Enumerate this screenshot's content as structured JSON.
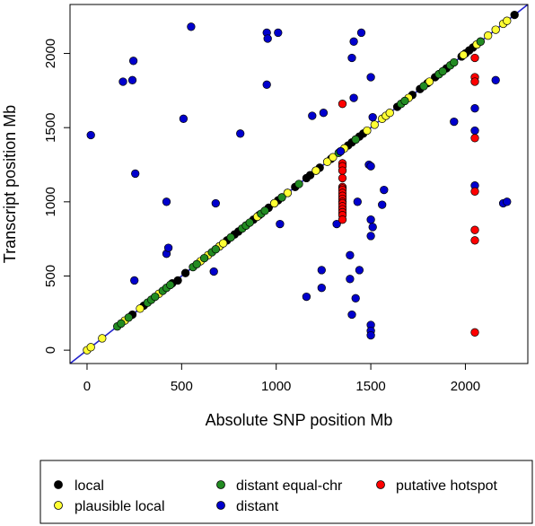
{
  "chart_data": {
    "type": "scatter",
    "title": "",
    "xlabel": "Absolute SNP position Mb",
    "ylabel": "Transcript position Mb",
    "xlim": [
      -90,
      2330
    ],
    "ylim": [
      -90,
      2330
    ],
    "xticks": [
      0,
      500,
      1000,
      1500,
      2000
    ],
    "yticks": [
      0,
      500,
      1000,
      1500,
      2000
    ],
    "reference_line": {
      "slope": 1,
      "intercept": 0,
      "color": "#2222cc"
    },
    "legend_position": "bottom",
    "series": [
      {
        "name": "local",
        "color": "#000000",
        "points": [
          [
            240,
            240
          ],
          [
            300,
            300
          ],
          [
            450,
            450
          ],
          [
            480,
            470
          ],
          [
            520,
            520
          ],
          [
            700,
            700
          ],
          [
            740,
            740
          ],
          [
            780,
            780
          ],
          [
            800,
            800
          ],
          [
            880,
            880
          ],
          [
            910,
            910
          ],
          [
            960,
            960
          ],
          [
            990,
            990
          ],
          [
            1010,
            1010
          ],
          [
            1030,
            1030
          ],
          [
            1060,
            1060
          ],
          [
            1100,
            1100
          ],
          [
            1160,
            1160
          ],
          [
            1180,
            1180
          ],
          [
            1210,
            1210
          ],
          [
            1230,
            1230
          ],
          [
            1290,
            1290
          ],
          [
            1380,
            1380
          ],
          [
            1400,
            1400
          ],
          [
            1420,
            1420
          ],
          [
            1440,
            1440
          ],
          [
            1460,
            1460
          ],
          [
            1640,
            1640
          ],
          [
            1720,
            1720
          ],
          [
            1760,
            1760
          ],
          [
            1800,
            1800
          ],
          [
            1840,
            1840
          ],
          [
            1900,
            1900
          ],
          [
            1980,
            1980
          ],
          [
            2000,
            2000
          ],
          [
            2020,
            2020
          ],
          [
            2040,
            2040
          ],
          [
            2060,
            2060
          ],
          [
            2080,
            2080
          ],
          [
            2260,
            2260
          ]
        ]
      },
      {
        "name": "plausible local",
        "color": "#ffff33",
        "points": [
          [
            0,
            0
          ],
          [
            20,
            20
          ],
          [
            80,
            80
          ],
          [
            200,
            200
          ],
          [
            280,
            280
          ],
          [
            380,
            380
          ],
          [
            600,
            600
          ],
          [
            640,
            640
          ],
          [
            700,
            700
          ],
          [
            720,
            720
          ],
          [
            840,
            840
          ],
          [
            900,
            900
          ],
          [
            990,
            990
          ],
          [
            1060,
            1060
          ],
          [
            1210,
            1210
          ],
          [
            1270,
            1270
          ],
          [
            1300,
            1300
          ],
          [
            1360,
            1360
          ],
          [
            1480,
            1480
          ],
          [
            1520,
            1520
          ],
          [
            1560,
            1560
          ],
          [
            1580,
            1580
          ],
          [
            1600,
            1600
          ],
          [
            1700,
            1700
          ],
          [
            1810,
            1810
          ],
          [
            1860,
            1860
          ],
          [
            1990,
            1990
          ],
          [
            2060,
            2060
          ],
          [
            2120,
            2120
          ],
          [
            2160,
            2160
          ],
          [
            2200,
            2200
          ],
          [
            2220,
            2220
          ]
        ]
      },
      {
        "name": "distant equal-chr",
        "color": "#228b22",
        "points": [
          [
            160,
            160
          ],
          [
            180,
            180
          ],
          [
            220,
            220
          ],
          [
            320,
            320
          ],
          [
            340,
            340
          ],
          [
            360,
            360
          ],
          [
            400,
            400
          ],
          [
            420,
            420
          ],
          [
            440,
            440
          ],
          [
            560,
            560
          ],
          [
            580,
            580
          ],
          [
            620,
            620
          ],
          [
            660,
            660
          ],
          [
            680,
            680
          ],
          [
            760,
            760
          ],
          [
            820,
            820
          ],
          [
            840,
            840
          ],
          [
            860,
            860
          ],
          [
            920,
            920
          ],
          [
            940,
            940
          ],
          [
            1030,
            1030
          ],
          [
            1120,
            1120
          ],
          [
            1330,
            1330
          ],
          [
            1340,
            1340
          ],
          [
            1420,
            1420
          ],
          [
            1660,
            1660
          ],
          [
            1680,
            1680
          ],
          [
            1780,
            1780
          ],
          [
            1860,
            1860
          ],
          [
            1880,
            1880
          ],
          [
            1920,
            1920
          ],
          [
            1940,
            1940
          ],
          [
            2080,
            2080
          ]
        ]
      },
      {
        "name": "distant",
        "color": "#0000cd",
        "points": [
          [
            20,
            1450
          ],
          [
            190,
            1810
          ],
          [
            240,
            1820
          ],
          [
            245,
            1950
          ],
          [
            250,
            470
          ],
          [
            255,
            1190
          ],
          [
            420,
            1000
          ],
          [
            420,
            650
          ],
          [
            430,
            690
          ],
          [
            510,
            1560
          ],
          [
            550,
            2180
          ],
          [
            670,
            530
          ],
          [
            680,
            990
          ],
          [
            810,
            1460
          ],
          [
            950,
            1790
          ],
          [
            950,
            2140
          ],
          [
            955,
            2100
          ],
          [
            1010,
            2140
          ],
          [
            1020,
            850
          ],
          [
            1160,
            360
          ],
          [
            1190,
            1580
          ],
          [
            1240,
            540
          ],
          [
            1240,
            420
          ],
          [
            1250,
            1600
          ],
          [
            1320,
            850
          ],
          [
            1340,
            1340
          ],
          [
            1390,
            640
          ],
          [
            1390,
            480
          ],
          [
            1400,
            240
          ],
          [
            1400,
            1970
          ],
          [
            1410,
            1700
          ],
          [
            1410,
            2080
          ],
          [
            1420,
            350
          ],
          [
            1430,
            1000
          ],
          [
            1440,
            540
          ],
          [
            1450,
            2140
          ],
          [
            1490,
            1250
          ],
          [
            1500,
            1240
          ],
          [
            1500,
            880
          ],
          [
            1500,
            770
          ],
          [
            1500,
            170
          ],
          [
            1500,
            130
          ],
          [
            1500,
            100
          ],
          [
            1500,
            1840
          ],
          [
            1510,
            1570
          ],
          [
            1510,
            830
          ],
          [
            1560,
            980
          ],
          [
            1570,
            1080
          ],
          [
            1940,
            1540
          ],
          [
            2050,
            1630
          ],
          [
            2050,
            1480
          ],
          [
            2050,
            1110
          ],
          [
            2160,
            1820
          ],
          [
            2200,
            990
          ],
          [
            2220,
            1000
          ]
        ]
      },
      {
        "name": "putative hotspot",
        "color": "#ff0000",
        "points": [
          [
            1350,
            1660
          ],
          [
            1350,
            1260
          ],
          [
            1350,
            1240
          ],
          [
            1350,
            1210
          ],
          [
            1350,
            1160
          ],
          [
            1350,
            1100
          ],
          [
            1350,
            1090
          ],
          [
            1350,
            1080
          ],
          [
            1350,
            1060
          ],
          [
            1350,
            1040
          ],
          [
            1350,
            1020
          ],
          [
            1350,
            1000
          ],
          [
            1350,
            990
          ],
          [
            1350,
            970
          ],
          [
            1350,
            950
          ],
          [
            1350,
            930
          ],
          [
            1350,
            910
          ],
          [
            1350,
            880
          ],
          [
            2050,
            1970
          ],
          [
            2050,
            1840
          ],
          [
            2050,
            1810
          ],
          [
            2050,
            1430
          ],
          [
            2050,
            1070
          ],
          [
            2050,
            810
          ],
          [
            2050,
            740
          ],
          [
            2050,
            120
          ]
        ]
      }
    ]
  },
  "legend": {
    "items": [
      {
        "label": "local",
        "color": "#000000"
      },
      {
        "label": "distant equal-chr",
        "color": "#228b22"
      },
      {
        "label": "putative hotspot",
        "color": "#ff0000"
      },
      {
        "label": "plausible local",
        "color": "#ffff33"
      },
      {
        "label": "distant",
        "color": "#0000cd"
      }
    ]
  }
}
